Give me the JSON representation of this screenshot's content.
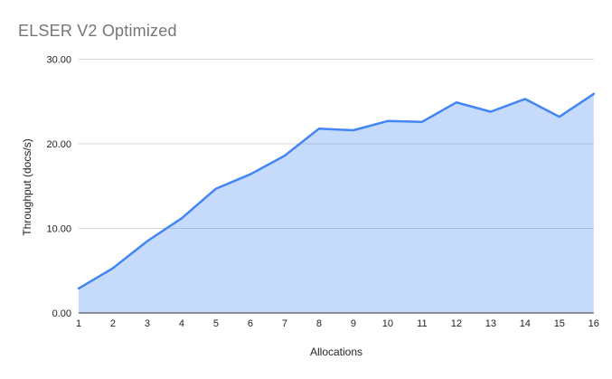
{
  "chart_data": {
    "type": "area",
    "title": "ELSER V2 Optimized",
    "xlabel": "Allocations",
    "ylabel": "Throughput (docs/s)",
    "categories": [
      "1",
      "2",
      "3",
      "4",
      "5",
      "6",
      "7",
      "8",
      "9",
      "10",
      "11",
      "12",
      "13",
      "14",
      "15",
      "16"
    ],
    "series": [
      {
        "name": "Throughput",
        "values": [
          2.9,
          5.3,
          8.5,
          11.2,
          14.7,
          16.4,
          18.6,
          21.8,
          21.6,
          22.7,
          22.6,
          24.9,
          23.8,
          25.3,
          23.2,
          25.9
        ]
      }
    ],
    "ylim": [
      0,
      30
    ],
    "y_ticks": [
      {
        "value": 0,
        "label": "0.00"
      },
      {
        "value": 10,
        "label": "10.00"
      },
      {
        "value": 20,
        "label": "20.00"
      },
      {
        "value": 30,
        "label": "30.00"
      }
    ],
    "grid": true,
    "legend_position": "none",
    "colors": {
      "line": "#4285f4",
      "fill": "rgba(66,133,244,0.3)",
      "gridline": "#d5d5d5",
      "axis_line": "#333333",
      "title_text": "#757575",
      "tick_text": "#222222"
    }
  }
}
